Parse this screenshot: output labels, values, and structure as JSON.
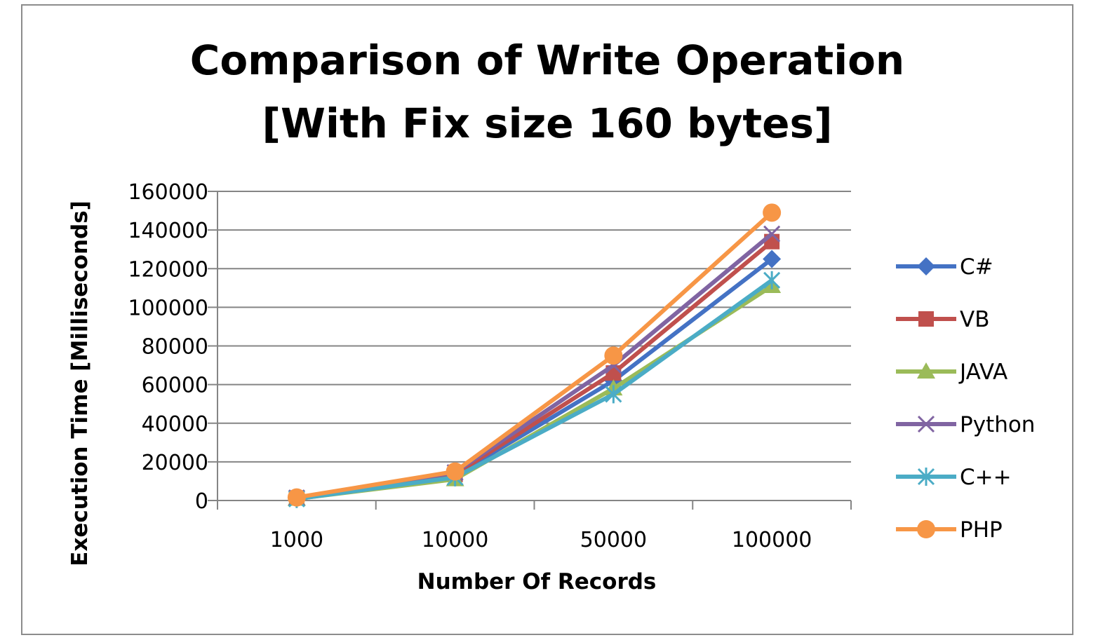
{
  "chart_data": {
    "type": "line",
    "title_lines": [
      "Comparison of Write Operation",
      "[With Fix size 160 bytes]"
    ],
    "xlabel": "Number Of Records",
    "ylabel": "Execution Time  [Milliseconds]",
    "categories": [
      "1000",
      "10000",
      "50000",
      "100000"
    ],
    "y_ticks": [
      "0",
      "20000",
      "40000",
      "60000",
      "80000",
      "100000",
      "120000",
      "140000",
      "160000"
    ],
    "ylim": [
      0,
      160000
    ],
    "grid": "horizontal",
    "legend_position": "right",
    "series": [
      {
        "name": "C#",
        "values": [
          1200,
          13000,
          62000,
          125000
        ],
        "color": "#4472c4",
        "marker": "diamond"
      },
      {
        "name": "VB",
        "values": [
          1300,
          13500,
          66000,
          134000
        ],
        "color": "#c0504d",
        "marker": "square"
      },
      {
        "name": "JAVA",
        "values": [
          900,
          11000,
          58000,
          111000
        ],
        "color": "#9bbb59",
        "marker": "triangle"
      },
      {
        "name": "Python",
        "values": [
          1400,
          14500,
          70000,
          138000
        ],
        "color": "#8064a2",
        "marker": "x"
      },
      {
        "name": "C++",
        "values": [
          800,
          12000,
          55000,
          114000
        ],
        "color": "#4bacc6",
        "marker": "star"
      },
      {
        "name": "PHP",
        "values": [
          1600,
          15000,
          75000,
          149000
        ],
        "color": "#f79646",
        "marker": "circle"
      }
    ]
  }
}
